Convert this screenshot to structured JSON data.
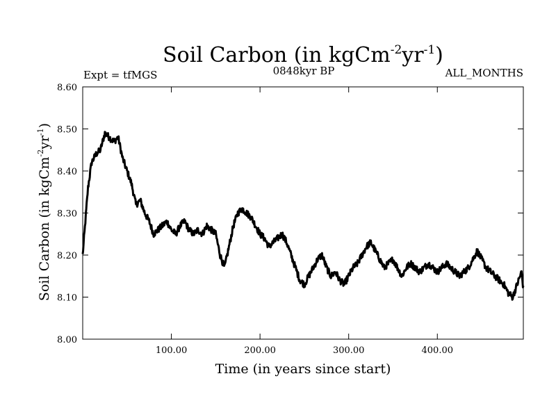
{
  "chart_data": {
    "type": "line",
    "title_main": "Soil Carbon (in kgCm",
    "title_sup1": "-2",
    "title_mid": "yr",
    "title_sup2": "-1",
    "title_end": ")",
    "subtitle_left": "Expt = tfMGS",
    "subtitle_center": "0848kyr BP",
    "subtitle_right": "ALL_MONTHS",
    "xlabel": "Time (in years since start)",
    "ylabel_main": "Soil Carbon (in kgCm",
    "ylabel_sup1": "-2",
    "ylabel_mid": "yr",
    "ylabel_sup2": "-1",
    "ylabel_end": ")",
    "xlim": [
      0,
      497
    ],
    "ylim": [
      8.0,
      8.6
    ],
    "x_ticks": [
      100,
      200,
      300,
      400
    ],
    "x_tick_labels": [
      "100.00",
      "200.00",
      "300.00",
      "400.00"
    ],
    "y_ticks": [
      8.0,
      8.1,
      8.2,
      8.3,
      8.4,
      8.5,
      8.6
    ],
    "y_tick_labels": [
      "8.00",
      "8.10",
      "8.20",
      "8.30",
      "8.40",
      "8.50",
      "8.60"
    ],
    "series": [
      {
        "name": "Soil Carbon",
        "color": "#000000",
        "x": [
          0,
          3,
          6,
          10,
          15,
          20,
          25,
          30,
          35,
          40,
          45,
          50,
          55,
          60,
          65,
          70,
          75,
          80,
          85,
          90,
          95,
          100,
          105,
          110,
          115,
          120,
          125,
          130,
          135,
          140,
          145,
          150,
          155,
          160,
          165,
          170,
          175,
          180,
          185,
          190,
          195,
          200,
          205,
          210,
          215,
          220,
          225,
          230,
          235,
          240,
          245,
          250,
          255,
          260,
          265,
          270,
          275,
          280,
          285,
          290,
          295,
          300,
          305,
          310,
          315,
          320,
          325,
          330,
          335,
          340,
          345,
          350,
          355,
          360,
          365,
          370,
          375,
          380,
          385,
          390,
          395,
          400,
          405,
          410,
          415,
          420,
          425,
          430,
          435,
          440,
          445,
          450,
          455,
          460,
          465,
          470,
          475,
          480,
          485,
          490,
          495,
          497
        ],
        "values": [
          8.2,
          8.28,
          8.36,
          8.42,
          8.44,
          8.45,
          8.49,
          8.48,
          8.47,
          8.48,
          8.43,
          8.4,
          8.37,
          8.32,
          8.33,
          8.3,
          8.28,
          8.25,
          8.26,
          8.27,
          8.28,
          8.26,
          8.25,
          8.27,
          8.28,
          8.26,
          8.25,
          8.26,
          8.25,
          8.27,
          8.26,
          8.25,
          8.2,
          8.17,
          8.22,
          8.27,
          8.3,
          8.31,
          8.3,
          8.29,
          8.27,
          8.25,
          8.24,
          8.22,
          8.23,
          8.24,
          8.25,
          8.23,
          8.2,
          8.17,
          8.14,
          8.13,
          8.15,
          8.17,
          8.19,
          8.2,
          8.17,
          8.15,
          8.16,
          8.14,
          8.13,
          8.15,
          8.17,
          8.18,
          8.2,
          8.22,
          8.23,
          8.21,
          8.19,
          8.17,
          8.18,
          8.19,
          8.17,
          8.15,
          8.17,
          8.18,
          8.17,
          8.16,
          8.17,
          8.18,
          8.17,
          8.16,
          8.17,
          8.18,
          8.17,
          8.16,
          8.15,
          8.16,
          8.17,
          8.19,
          8.21,
          8.19,
          8.17,
          8.16,
          8.15,
          8.14,
          8.13,
          8.11,
          8.1,
          8.13,
          8.16,
          8.12
        ]
      }
    ]
  }
}
